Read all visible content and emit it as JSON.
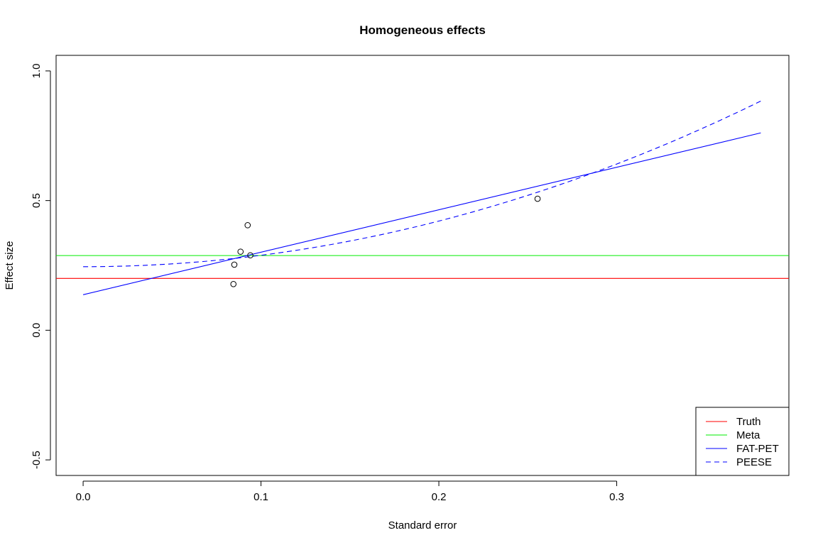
{
  "chart_data": {
    "type": "scatter",
    "title": "Homogeneous effects",
    "xlabel": "Standard error",
    "ylabel": "Effect size",
    "xlim": [
      -0.0152,
      0.3968
    ],
    "ylim": [
      -0.56,
      1.06
    ],
    "grid": false,
    "x_ticks": [
      0.0,
      0.1,
      0.2,
      0.3
    ],
    "x_tick_labels": [
      "0.0",
      "0.1",
      "0.2",
      "0.3"
    ],
    "y_ticks": [
      -0.5,
      0.0,
      0.5,
      1.0
    ],
    "y_tick_labels": [
      "-0.5",
      "0.0",
      "0.5",
      "1.0"
    ],
    "points": [
      {
        "x": 0.0845,
        "y": 0.178
      },
      {
        "x": 0.085,
        "y": 0.253
      },
      {
        "x": 0.0885,
        "y": 0.303
      },
      {
        "x": 0.0925,
        "y": 0.405
      },
      {
        "x": 0.094,
        "y": 0.289
      },
      {
        "x": 0.2555,
        "y": 0.507
      }
    ],
    "series": [
      {
        "name": "Truth",
        "kind": "hline",
        "y": 0.2,
        "color": "#ff0000",
        "dash": "solid"
      },
      {
        "name": "Meta",
        "kind": "hline",
        "y": 0.288,
        "color": "#00ee00",
        "dash": "solid"
      },
      {
        "name": "FAT-PET",
        "kind": "line",
        "x": [
          0.0,
          0.381
        ],
        "y": [
          0.137,
          0.761
        ],
        "color": "#0000ff",
        "dash": "solid"
      },
      {
        "name": "PEESE",
        "kind": "quadratic",
        "x": [
          0.0,
          0.381
        ],
        "intercept": 0.245,
        "slope": 0.0,
        "quad": 4.4,
        "color": "#0000ff",
        "dash": "dashed"
      }
    ],
    "legend": {
      "position": "bottom-right",
      "entries": [
        "Truth",
        "Meta",
        "FAT-PET",
        "PEESE"
      ]
    }
  }
}
